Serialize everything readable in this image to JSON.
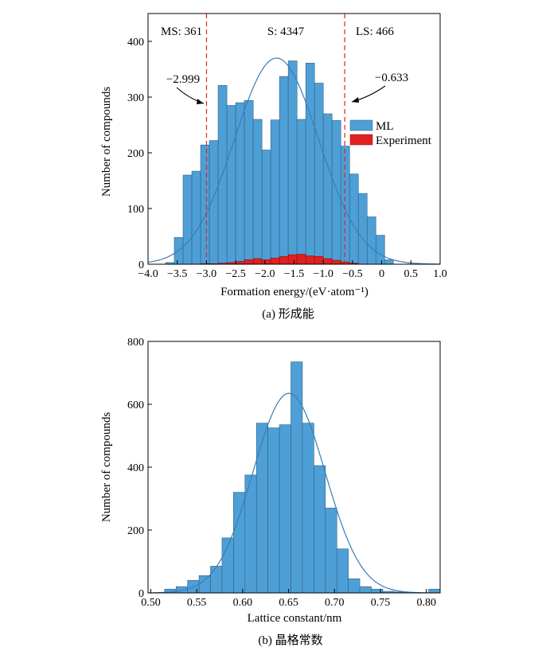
{
  "chart_data": [
    {
      "type": "bar",
      "caption": "(a) 形成能",
      "xlabel": "Formation energy/(eV·atom⁻¹)",
      "ylabel": "Number of compounds",
      "xlim": [
        -4.0,
        1.0
      ],
      "ylim": [
        0,
        450
      ],
      "xticks": [
        "−4.0",
        "−3.5",
        "−3.0",
        "−2.5",
        "−2.0",
        "−1.5",
        "−1.0",
        "−0.5",
        "0",
        "0.5",
        "1.0"
      ],
      "yticks": [
        "0",
        "100",
        "200",
        "300",
        "400"
      ],
      "grid": false,
      "legend": "right",
      "bin_width": 0.15,
      "series": [
        {
          "name": "ML",
          "color": "#4e9fd6",
          "x": [
            -3.775,
            -3.625,
            -3.475,
            -3.325,
            -3.175,
            -3.025,
            -2.875,
            -2.725,
            -2.575,
            -2.425,
            -2.275,
            -2.125,
            -1.975,
            -1.825,
            -1.675,
            -1.525,
            -1.375,
            -1.225,
            -1.075,
            -0.925,
            -0.775,
            -0.625,
            -0.475,
            -0.325,
            -0.175,
            -0.025,
            0.125
          ],
          "values": [
            0,
            3,
            48,
            160,
            167,
            214,
            222,
            321,
            285,
            290,
            294,
            260,
            205,
            259,
            337,
            365,
            260,
            361,
            325,
            270,
            258,
            212,
            162,
            127,
            85,
            52,
            8
          ]
        },
        {
          "name": "Experiment",
          "color": "#e02020",
          "x": [
            -3.025,
            -2.875,
            -2.725,
            -2.575,
            -2.425,
            -2.275,
            -2.125,
            -1.975,
            -1.825,
            -1.675,
            -1.525,
            -1.375,
            -1.225,
            -1.075,
            -0.925,
            -0.775,
            -0.625,
            -0.475
          ],
          "values": [
            1,
            1,
            2,
            3,
            5,
            8,
            10,
            8,
            11,
            14,
            17,
            18,
            15,
            14,
            10,
            7,
            4,
            2
          ]
        }
      ],
      "fit": {
        "mu": -1.8,
        "sigma": 0.72,
        "peak": 370
      },
      "thresholds": [
        -2.999,
        -0.633
      ],
      "region_labels": [
        "MS: 361",
        "S: 4347",
        "LS: 466"
      ],
      "annotations": [
        "−2.999",
        "−0.633"
      ]
    },
    {
      "type": "bar",
      "caption": "(b) 晶格常数",
      "xlabel": "Lattice constant/nm",
      "ylabel": "Number of compounds",
      "xlim": [
        0.497,
        0.815
      ],
      "ylim": [
        0,
        800
      ],
      "xticks": [
        "0.50",
        "0.55",
        "0.60",
        "0.65",
        "0.70",
        "0.75",
        "0.80"
      ],
      "yticks": [
        "0",
        "200",
        "400",
        "600",
        "800"
      ],
      "grid": false,
      "bin_width": 0.0125,
      "series": [
        {
          "name": "ML",
          "color": "#4e9fd6",
          "x": [
            0.5213,
            0.5338,
            0.5463,
            0.5588,
            0.5713,
            0.5838,
            0.5963,
            0.6088,
            0.6213,
            0.6338,
            0.6463,
            0.6588,
            0.6713,
            0.6838,
            0.6963,
            0.7088,
            0.7213,
            0.7338,
            0.7463,
            0.7588,
            0.7713,
            0.8088
          ],
          "values": [
            12,
            20,
            40,
            55,
            85,
            175,
            320,
            375,
            540,
            525,
            535,
            735,
            540,
            405,
            270,
            140,
            45,
            20,
            12,
            5,
            3,
            12
          ]
        }
      ],
      "fit": {
        "mu": 0.6505,
        "sigma": 0.0392,
        "peak": 635
      }
    }
  ]
}
